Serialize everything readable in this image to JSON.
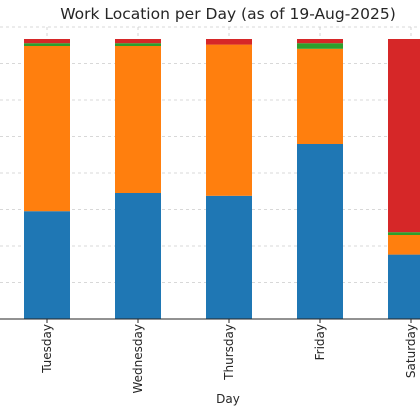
{
  "chart_data": {
    "type": "bar",
    "stacked": true,
    "title": "Work Location per Day (as of 19-Aug-2025)",
    "xlabel": "Day",
    "ylabel": "",
    "categories": [
      "Tuesday",
      "Wednesday",
      "Thursday",
      "Friday",
      "Saturday"
    ],
    "series": [
      {
        "color": "#1f77b4",
        "values": [
          0.385,
          0.45,
          0.44,
          0.625,
          0.23
        ]
      },
      {
        "color": "#ff7f0e",
        "values": [
          0.59,
          0.525,
          0.54,
          0.34,
          0.07
        ]
      },
      {
        "color": "#2ca02c",
        "values": [
          0.01,
          0.01,
          0.0,
          0.02,
          0.01
        ]
      },
      {
        "color": "#d62728",
        "values": [
          0.015,
          0.015,
          0.02,
          0.015,
          0.69
        ]
      }
    ],
    "ylim": [
      0,
      1.0
    ],
    "grid": true
  }
}
